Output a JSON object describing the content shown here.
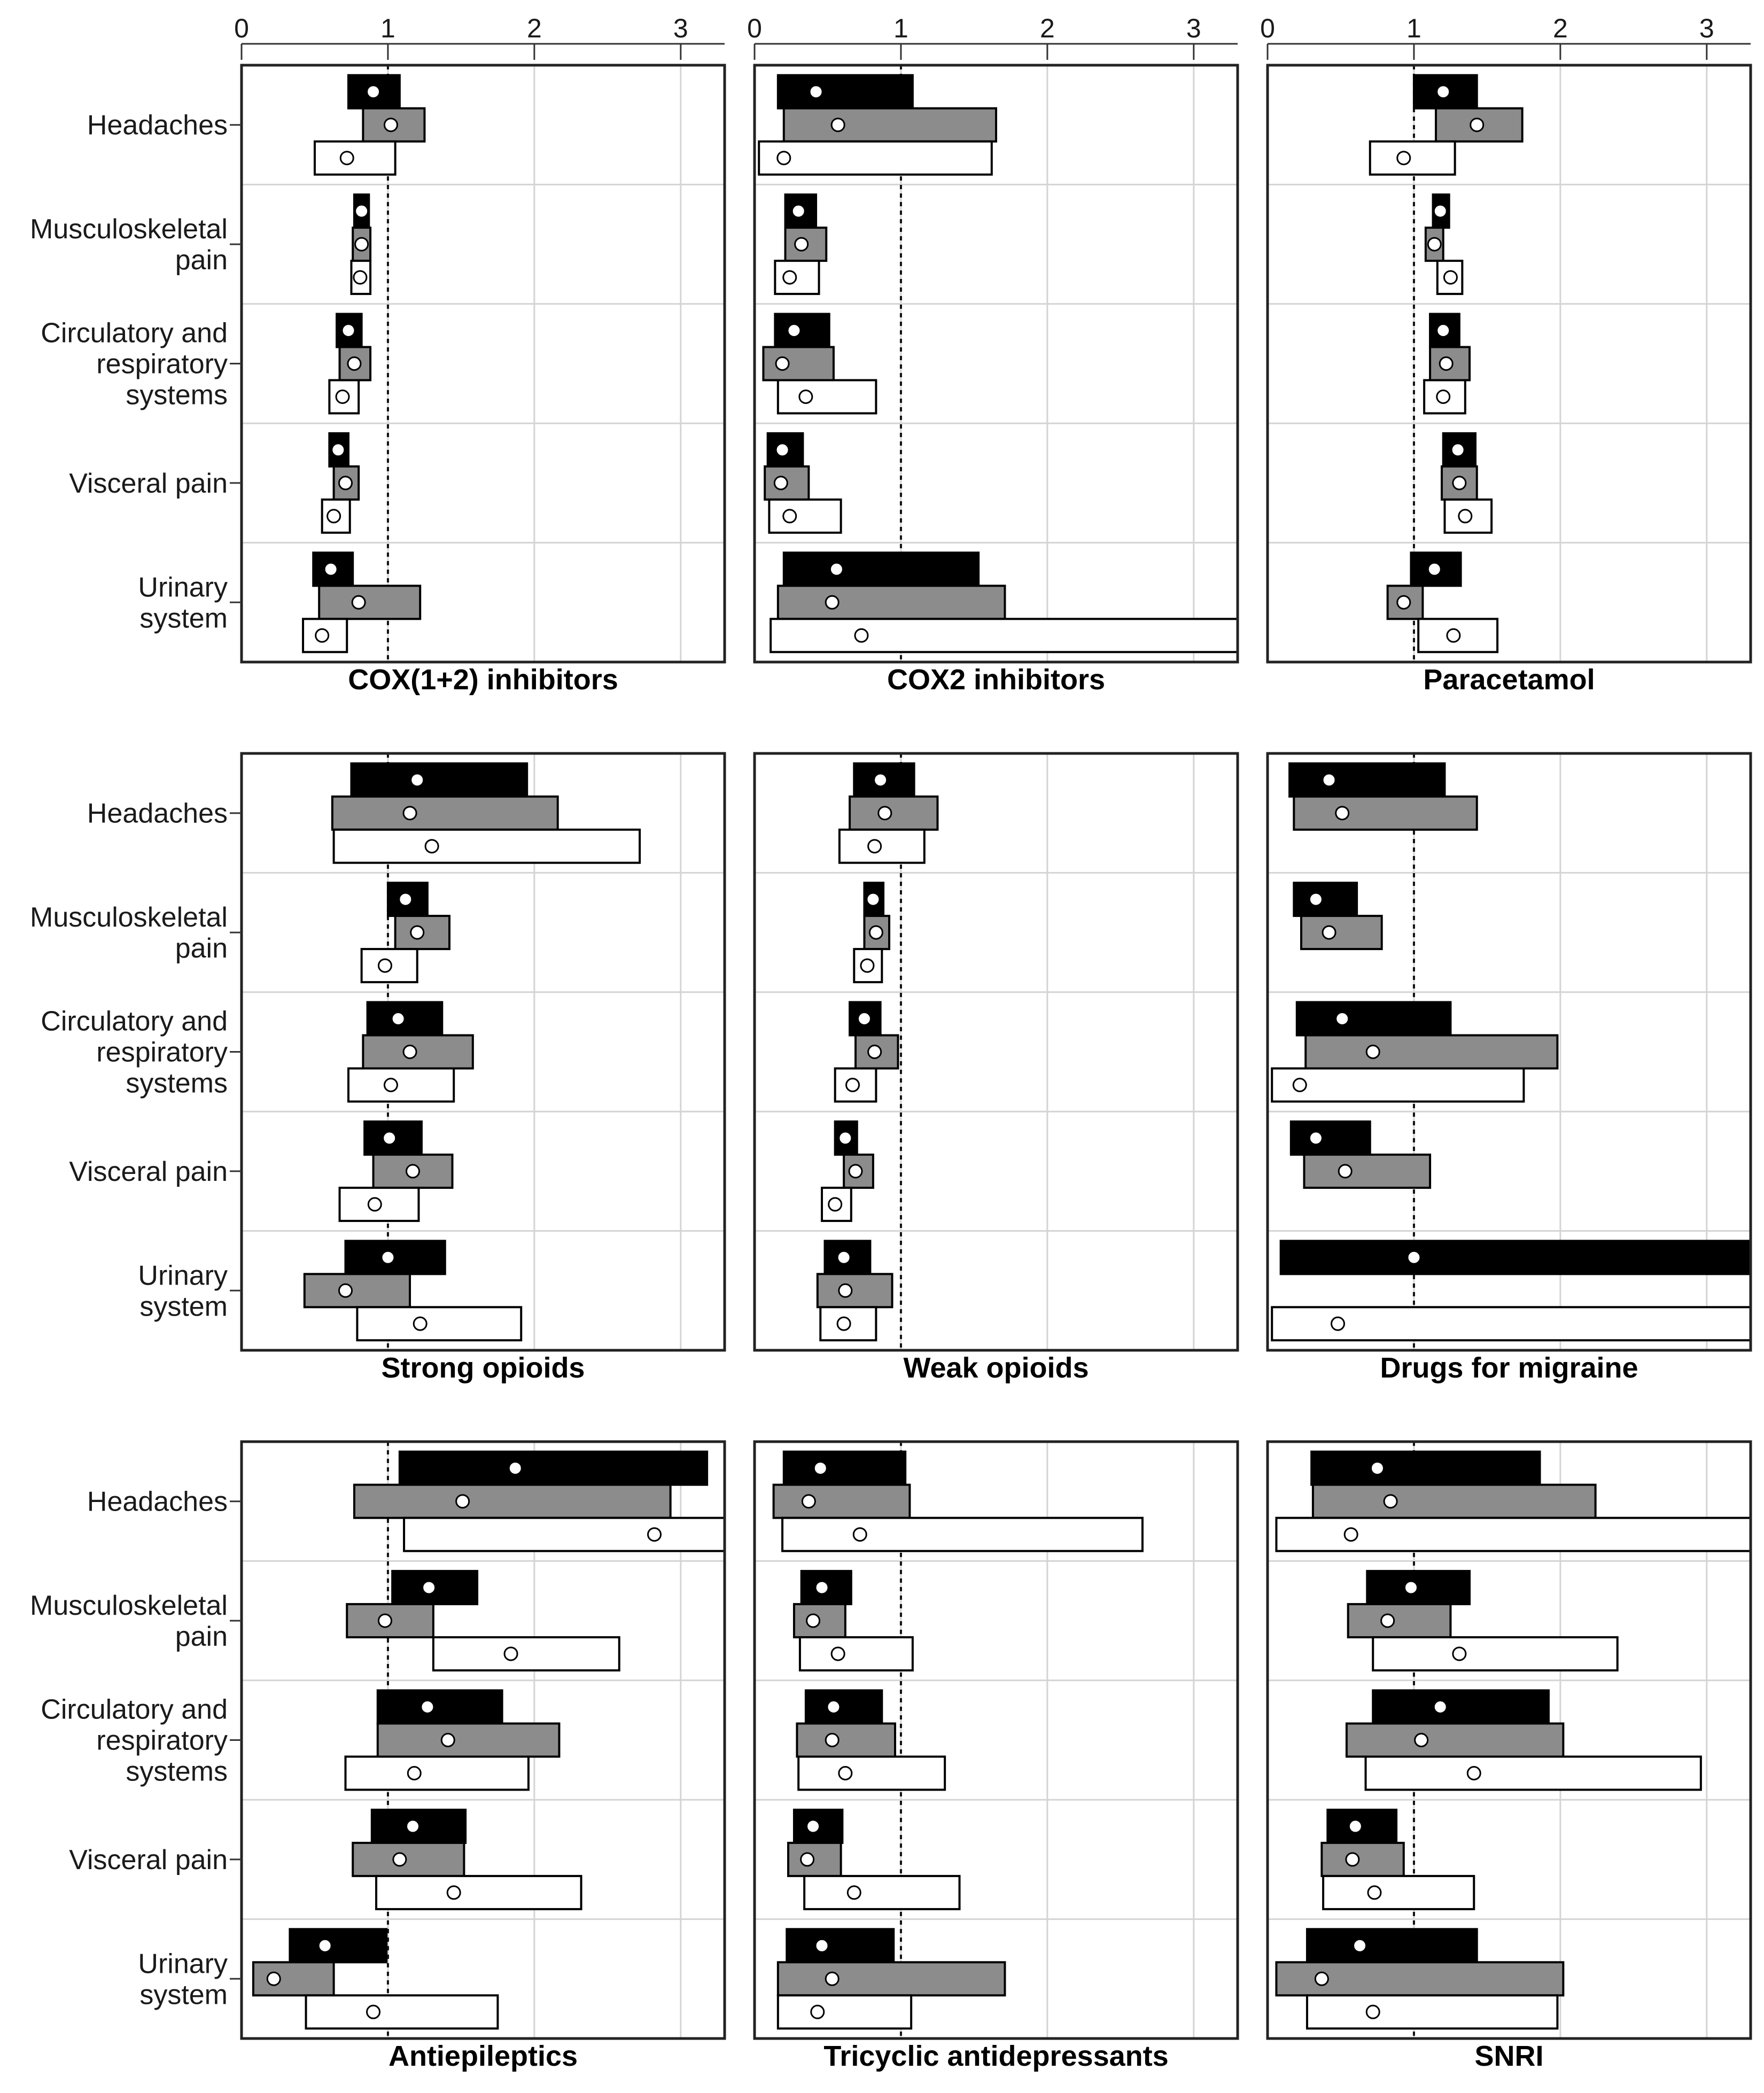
{
  "chart_data": {
    "type": "bar",
    "description_axis": "horizontal interval bars with point estimates, 3 rows x 3 panels",
    "xlim": [
      0,
      3.3
    ],
    "x_ticks": [
      "0",
      "1",
      "2",
      "3"
    ],
    "reference_line": 1,
    "grid": true,
    "categories": [
      [
        "Headaches"
      ],
      [
        "Musculoskeletal",
        "pain"
      ],
      [
        "Circulatory and",
        "respiratory",
        "systems"
      ],
      [
        "Visceral pain"
      ],
      [
        "Urinary",
        "system"
      ]
    ],
    "series_styles": [
      {
        "fill": "#000000",
        "dot": "#ffffff"
      },
      {
        "fill": "#8c8c8c",
        "dot": "#ffffff"
      },
      {
        "fill": "#ffffff",
        "dot": "#ffffff"
      }
    ],
    "panels": [
      {
        "title": "COX(1+2) inhibitors",
        "rows": [
          [
            [
              0.73,
              0.9,
              1.08
            ],
            [
              0.83,
              1.02,
              1.25
            ],
            [
              0.5,
              0.72,
              1.05
            ]
          ],
          [
            [
              0.77,
              0.82,
              0.87
            ],
            [
              0.76,
              0.82,
              0.88
            ],
            [
              0.75,
              0.81,
              0.88
            ]
          ],
          [
            [
              0.65,
              0.73,
              0.82
            ],
            [
              0.67,
              0.77,
              0.88
            ],
            [
              0.6,
              0.69,
              0.8
            ]
          ],
          [
            [
              0.6,
              0.66,
              0.73
            ],
            [
              0.63,
              0.71,
              0.8
            ],
            [
              0.55,
              0.63,
              0.74
            ]
          ],
          [
            [
              0.49,
              0.61,
              0.76
            ],
            [
              0.53,
              0.8,
              1.22
            ],
            [
              0.42,
              0.55,
              0.72
            ]
          ]
        ]
      },
      {
        "title": "COX2 inhibitors",
        "rows": [
          [
            [
              0.16,
              0.42,
              1.08
            ],
            [
              0.2,
              0.57,
              1.65
            ],
            [
              0.03,
              0.2,
              1.62
            ]
          ],
          [
            [
              0.21,
              0.3,
              0.42
            ],
            [
              0.21,
              0.32,
              0.49
            ],
            [
              0.14,
              0.24,
              0.44
            ]
          ],
          [
            [
              0.14,
              0.27,
              0.51
            ],
            [
              0.06,
              0.19,
              0.54
            ],
            [
              0.16,
              0.35,
              0.83
            ]
          ],
          [
            [
              0.09,
              0.19,
              0.33
            ],
            [
              0.07,
              0.18,
              0.37
            ],
            [
              0.1,
              0.24,
              0.59
            ]
          ],
          [
            [
              0.2,
              0.56,
              1.53
            ],
            [
              0.16,
              0.53,
              1.71
            ],
            [
              0.11,
              0.73,
              3.3
            ]
          ]
        ]
      },
      {
        "title": "Paracetamol",
        "rows": [
          [
            [
              1.0,
              1.2,
              1.43
            ],
            [
              1.15,
              1.43,
              1.74
            ],
            [
              0.7,
              0.93,
              1.28
            ]
          ],
          [
            [
              1.13,
              1.18,
              1.24
            ],
            [
              1.08,
              1.14,
              1.2
            ],
            [
              1.16,
              1.25,
              1.33
            ]
          ],
          [
            [
              1.11,
              1.2,
              1.31
            ],
            [
              1.11,
              1.22,
              1.38
            ],
            [
              1.07,
              1.2,
              1.35
            ]
          ],
          [
            [
              1.2,
              1.3,
              1.42
            ],
            [
              1.19,
              1.31,
              1.43
            ],
            [
              1.21,
              1.35,
              1.53
            ]
          ],
          [
            [
              0.98,
              1.14,
              1.32
            ],
            [
              0.82,
              0.93,
              1.06
            ],
            [
              1.03,
              1.27,
              1.57
            ]
          ]
        ]
      },
      {
        "title": "Strong opioids",
        "rows": [
          [
            [
              0.75,
              1.2,
              1.95
            ],
            [
              0.62,
              1.15,
              2.16
            ],
            [
              0.63,
              1.3,
              2.72
            ]
          ],
          [
            [
              1.0,
              1.12,
              1.27
            ],
            [
              1.05,
              1.2,
              1.42
            ],
            [
              0.82,
              0.98,
              1.2
            ]
          ],
          [
            [
              0.86,
              1.07,
              1.37
            ],
            [
              0.83,
              1.15,
              1.58
            ],
            [
              0.73,
              1.02,
              1.45
            ]
          ],
          [
            [
              0.84,
              1.01,
              1.23
            ],
            [
              0.9,
              1.17,
              1.44
            ],
            [
              0.67,
              0.91,
              1.21
            ]
          ],
          [
            [
              0.71,
              1.0,
              1.39
            ],
            [
              0.43,
              0.71,
              1.15
            ],
            [
              0.79,
              1.22,
              1.91
            ]
          ]
        ]
      },
      {
        "title": "Weak opioids",
        "rows": [
          [
            [
              0.68,
              0.86,
              1.09
            ],
            [
              0.65,
              0.89,
              1.25
            ],
            [
              0.58,
              0.82,
              1.16
            ]
          ],
          [
            [
              0.75,
              0.81,
              0.88
            ],
            [
              0.75,
              0.83,
              0.92
            ],
            [
              0.68,
              0.77,
              0.87
            ]
          ],
          [
            [
              0.65,
              0.75,
              0.86
            ],
            [
              0.69,
              0.82,
              0.98
            ],
            [
              0.55,
              0.67,
              0.83
            ]
          ],
          [
            [
              0.55,
              0.62,
              0.7
            ],
            [
              0.61,
              0.69,
              0.81
            ],
            [
              0.46,
              0.55,
              0.66
            ]
          ],
          [
            [
              0.48,
              0.61,
              0.79
            ],
            [
              0.43,
              0.62,
              0.94
            ],
            [
              0.45,
              0.61,
              0.83
            ]
          ]
        ]
      },
      {
        "title": "Drugs for migraine",
        "rows": [
          [
            [
              0.15,
              0.42,
              1.21
            ],
            [
              0.18,
              0.51,
              1.43
            ],
            null
          ],
          [
            [
              0.18,
              0.33,
              0.61
            ],
            [
              0.23,
              0.42,
              0.78
            ],
            null
          ],
          [
            [
              0.2,
              0.51,
              1.25
            ],
            [
              0.26,
              0.72,
              1.98
            ],
            [
              0.03,
              0.22,
              1.75
            ]
          ],
          [
            [
              0.16,
              0.33,
              0.7
            ],
            [
              0.25,
              0.53,
              1.11
            ],
            null
          ],
          [
            [
              0.09,
              1.0,
              3.3
            ],
            null,
            [
              0.03,
              0.48,
              3.3
            ]
          ]
        ]
      },
      {
        "title": "Antiepileptics",
        "rows": [
          [
            [
              1.08,
              1.87,
              3.18
            ],
            [
              0.77,
              1.51,
              2.93
            ],
            [
              1.11,
              2.82,
              3.3
            ]
          ],
          [
            [
              1.03,
              1.28,
              1.61
            ],
            [
              0.72,
              0.98,
              1.31
            ],
            [
              1.31,
              1.84,
              2.58
            ]
          ],
          [
            [
              0.93,
              1.27,
              1.78
            ],
            [
              0.93,
              1.41,
              2.17
            ],
            [
              0.71,
              1.18,
              1.96
            ]
          ],
          [
            [
              0.89,
              1.17,
              1.53
            ],
            [
              0.76,
              1.08,
              1.52
            ],
            [
              0.92,
              1.45,
              2.32
            ]
          ],
          [
            [
              0.33,
              0.57,
              0.99
            ],
            [
              0.08,
              0.22,
              0.63
            ],
            [
              0.44,
              0.9,
              1.75
            ]
          ]
        ]
      },
      {
        "title": "Tricyclic antidepressants",
        "rows": [
          [
            [
              0.2,
              0.45,
              1.03
            ],
            [
              0.13,
              0.37,
              1.06
            ],
            [
              0.19,
              0.72,
              2.65
            ]
          ],
          [
            [
              0.32,
              0.46,
              0.66
            ],
            [
              0.27,
              0.4,
              0.62
            ],
            [
              0.31,
              0.57,
              1.08
            ]
          ],
          [
            [
              0.35,
              0.54,
              0.87
            ],
            [
              0.29,
              0.53,
              0.96
            ],
            [
              0.3,
              0.62,
              1.3
            ]
          ],
          [
            [
              0.27,
              0.4,
              0.6
            ],
            [
              0.23,
              0.36,
              0.59
            ],
            [
              0.34,
              0.68,
              1.4
            ]
          ],
          [
            [
              0.22,
              0.46,
              0.95
            ],
            [
              0.16,
              0.53,
              1.71
            ],
            [
              0.16,
              0.43,
              1.07
            ]
          ]
        ]
      },
      {
        "title": "SNRI",
        "rows": [
          [
            [
              0.3,
              0.75,
              1.86
            ],
            [
              0.31,
              0.84,
              2.24
            ],
            [
              0.06,
              0.57,
              3.3
            ]
          ],
          [
            [
              0.68,
              0.98,
              1.38
            ],
            [
              0.55,
              0.82,
              1.25
            ],
            [
              0.72,
              1.31,
              2.39
            ]
          ],
          [
            [
              0.72,
              1.18,
              1.92
            ],
            [
              0.54,
              1.05,
              2.02
            ],
            [
              0.67,
              1.41,
              2.96
            ]
          ],
          [
            [
              0.41,
              0.6,
              0.88
            ],
            [
              0.37,
              0.58,
              0.93
            ],
            [
              0.38,
              0.73,
              1.41
            ]
          ],
          [
            [
              0.27,
              0.63,
              1.43
            ],
            [
              0.06,
              0.37,
              2.02
            ],
            [
              0.27,
              0.72,
              1.98
            ]
          ]
        ]
      }
    ]
  }
}
